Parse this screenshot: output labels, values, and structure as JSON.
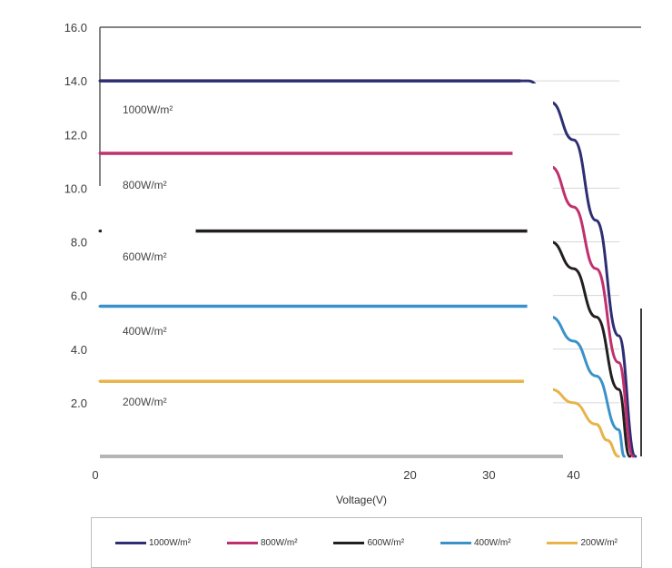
{
  "chart_data": {
    "type": "line",
    "title": "",
    "xlabel": "Voltage(V)",
    "ylabel": "",
    "xlim": [
      0,
      48
    ],
    "ylim": [
      0,
      16
    ],
    "x_ticks": [
      "0",
      "20",
      "30",
      "40"
    ],
    "y_ticks": [
      "2.0",
      "4.0",
      "6.0",
      "8.0",
      "10.0",
      "12.0",
      "14.0",
      "16.0"
    ],
    "grid": true,
    "legend_position": "bottom",
    "series": [
      {
        "name": "1000W/m²",
        "label": "1000W/m²",
        "color": "#2e2f73",
        "isc": 14.0,
        "x": [
          0,
          38,
          40,
          42,
          44,
          46,
          47.5
        ],
        "y": [
          14.0,
          14.0,
          13.2,
          11.8,
          8.8,
          4.5,
          0
        ]
      },
      {
        "name": "800W/m²",
        "label": "800W/m²",
        "color": "#c0306e",
        "isc": 11.3,
        "x": [
          0,
          38,
          40,
          42,
          44,
          46,
          47.3
        ],
        "y": [
          11.3,
          11.3,
          10.8,
          9.3,
          7.0,
          3.5,
          0
        ]
      },
      {
        "name": "600W/m²",
        "label": "600W/m²",
        "color": "#231f20",
        "isc": 8.4,
        "x": [
          0,
          38,
          40,
          42,
          44,
          46,
          47.0
        ],
        "y": [
          8.4,
          8.4,
          8.0,
          7.0,
          5.2,
          2.5,
          0
        ]
      },
      {
        "name": "400W/m²",
        "label": "400W/m²",
        "color": "#3a92c9",
        "isc": 5.6,
        "x": [
          0,
          38,
          40,
          42,
          44,
          46,
          46.5
        ],
        "y": [
          5.6,
          5.6,
          5.2,
          4.3,
          3.0,
          1.0,
          0
        ]
      },
      {
        "name": "200W/m²",
        "label": "200W/m²",
        "color": "#e8b44a",
        "isc": 2.8,
        "x": [
          0,
          38,
          40,
          42,
          44,
          45,
          46.0
        ],
        "y": [
          2.8,
          2.8,
          2.5,
          2.0,
          1.2,
          0.6,
          0
        ]
      }
    ]
  }
}
